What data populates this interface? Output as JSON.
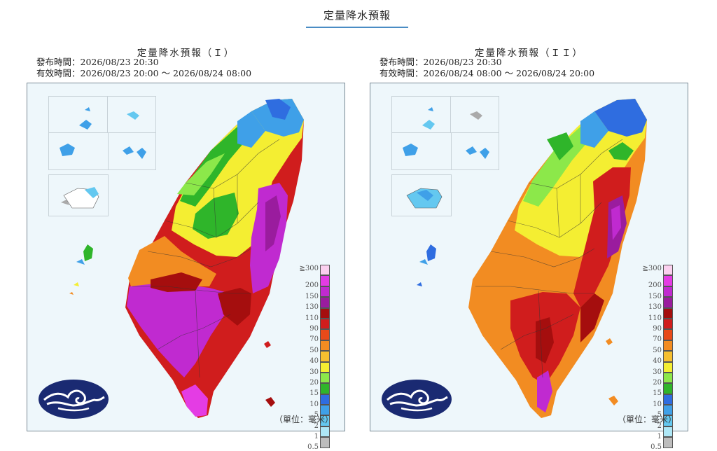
{
  "page": {
    "title": "定量降水預報"
  },
  "panels": [
    {
      "title": "定量降水預報（Ｉ）",
      "issued": "發布時間：2026/08/23 20:30",
      "valid": "有效時間：2026/08/23 20:00 ～ 2026/08/24 08:00",
      "unit": "（單位：毫米）"
    },
    {
      "title": "定量降水預報（ＩＩ）",
      "issued": "發布時間：2026/08/23 20:30",
      "valid": "有效時間：2026/08/24 08:00 ～ 2026/08/24 20:00",
      "unit": "（單位：毫米）"
    }
  ],
  "legend": {
    "labels": [
      "≧300",
      "200",
      "150",
      "130",
      "110",
      "90",
      "70",
      "50",
      "40",
      "30",
      "20",
      "15",
      "10",
      "5",
      "2",
      "1",
      "0.5"
    ],
    "colors": [
      "#fbd0ef",
      "#e43ce4",
      "#c02ad0",
      "#9a1c9e",
      "#a50e0e",
      "#d01d1d",
      "#e84a1a",
      "#f28c22",
      "#f6bf30",
      "#f4ee32",
      "#8ce84a",
      "#2fb52a",
      "#2f6de0",
      "#3fa0e8",
      "#64c8f0",
      "#aee7f6",
      "#bdbdbd"
    ]
  },
  "colors": {
    "title_underline": "#4a8cc4",
    "map_background": "#eef7fb",
    "logo": "#1a2a72"
  }
}
